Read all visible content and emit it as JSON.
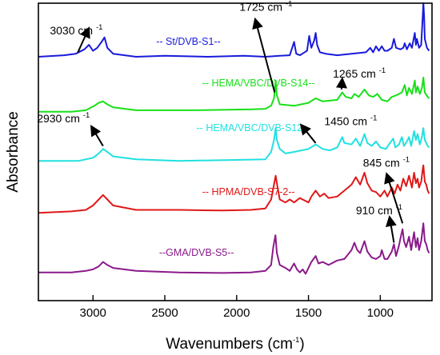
{
  "chart_data": {
    "type": "line",
    "xlabel": "Wavenumbers (cm",
    "xlabel_sup": "-1",
    "xlabel_end": ")",
    "ylabel": "Absorbance",
    "x_reversed": true,
    "xlim": [
      3380,
      640
    ],
    "ylim": [
      0,
      100
    ],
    "x_ticks": [
      3000,
      2500,
      2000,
      1500,
      1000
    ],
    "x_tick_labels": [
      "3000",
      "2500",
      "2000",
      "1500",
      "1000"
    ],
    "y_ticks_shown": false,
    "grid": false,
    "series": [
      {
        "name": "-- St/DVB-S1--",
        "color": "#1a1adc",
        "label_x": 2560,
        "label_y": 86,
        "points": [
          [
            3380,
            82
          ],
          [
            3200,
            82.5
          ],
          [
            3120,
            83
          ],
          [
            3060,
            84.5
          ],
          [
            3028,
            86
          ],
          [
            3000,
            84
          ],
          [
            2970,
            85
          ],
          [
            2940,
            87
          ],
          [
            2920,
            88.5
          ],
          [
            2900,
            85
          ],
          [
            2860,
            83
          ],
          [
            2700,
            82
          ],
          [
            2500,
            82.3
          ],
          [
            2200,
            82
          ],
          [
            1950,
            82.3
          ],
          [
            1800,
            82
          ],
          [
            1700,
            82.3
          ],
          [
            1630,
            82.5
          ],
          [
            1600,
            87
          ],
          [
            1585,
            83
          ],
          [
            1560,
            82.5
          ],
          [
            1510,
            84
          ],
          [
            1495,
            89
          ],
          [
            1480,
            85
          ],
          [
            1460,
            87.5
          ],
          [
            1450,
            90
          ],
          [
            1440,
            86
          ],
          [
            1420,
            83.5
          ],
          [
            1380,
            83
          ],
          [
            1300,
            82.5
          ],
          [
            1200,
            83
          ],
          [
            1100,
            83.5
          ],
          [
            1070,
            85
          ],
          [
            1050,
            83.5
          ],
          [
            1030,
            85.5
          ],
          [
            1010,
            84
          ],
          [
            990,
            85.5
          ],
          [
            970,
            84
          ],
          [
            950,
            84
          ],
          [
            920,
            85
          ],
          [
            905,
            88
          ],
          [
            890,
            85
          ],
          [
            860,
            84.5
          ],
          [
            840,
            85
          ],
          [
            830,
            86.5
          ],
          [
            815,
            84.5
          ],
          [
            795,
            86.5
          ],
          [
            780,
            85
          ],
          [
            760,
            90
          ],
          [
            752,
            86
          ],
          [
            745,
            88
          ],
          [
            730,
            85
          ],
          [
            715,
            86
          ],
          [
            705,
            95
          ],
          [
            700,
            100
          ],
          [
            695,
            96
          ],
          [
            690,
            88
          ],
          [
            675,
            85
          ],
          [
            660,
            84
          ]
        ]
      },
      {
        "name": "-- HEMA/VBC/DVB-S14--",
        "color": "#18e018",
        "label_x": 2240,
        "label_y": 72,
        "points": [
          [
            3380,
            63.5
          ],
          [
            3150,
            63.5
          ],
          [
            3050,
            64
          ],
          [
            2990,
            65.5
          ],
          [
            2960,
            66.5
          ],
          [
            2930,
            67
          ],
          [
            2900,
            66
          ],
          [
            2860,
            65
          ],
          [
            2700,
            64
          ],
          [
            2300,
            64
          ],
          [
            1900,
            64.3
          ],
          [
            1800,
            64.5
          ],
          [
            1760,
            65.5
          ],
          [
            1740,
            68
          ],
          [
            1728,
            74
          ],
          [
            1720,
            69
          ],
          [
            1700,
            66
          ],
          [
            1600,
            65.5
          ],
          [
            1550,
            66
          ],
          [
            1500,
            66.5
          ],
          [
            1450,
            68
          ],
          [
            1400,
            67
          ],
          [
            1300,
            67.5
          ],
          [
            1265,
            70
          ],
          [
            1240,
            68.5
          ],
          [
            1200,
            68
          ],
          [
            1180,
            69.5
          ],
          [
            1150,
            68.5
          ],
          [
            1110,
            71
          ],
          [
            1080,
            69
          ],
          [
            1050,
            68.5
          ],
          [
            1020,
            69.5
          ],
          [
            990,
            67.5
          ],
          [
            950,
            67
          ],
          [
            920,
            68.5
          ],
          [
            890,
            69
          ],
          [
            850,
            70
          ],
          [
            830,
            72.5
          ],
          [
            815,
            69
          ],
          [
            800,
            71.5
          ],
          [
            780,
            69.5
          ],
          [
            760,
            74
          ],
          [
            752,
            70
          ],
          [
            740,
            72
          ],
          [
            725,
            69.5
          ],
          [
            710,
            71.5
          ],
          [
            700,
            75
          ],
          [
            690,
            70
          ],
          [
            670,
            68.5
          ],
          [
            660,
            68
          ]
        ]
      },
      {
        "name": "-- HEMA/VBC/DVB-S12--",
        "color": "#22e0e0",
        "label_x": 2280,
        "label_y": 57,
        "points": [
          [
            3380,
            47
          ],
          [
            3100,
            47
          ],
          [
            3000,
            48
          ],
          [
            2960,
            49.5
          ],
          [
            2930,
            51
          ],
          [
            2900,
            50
          ],
          [
            2860,
            48.5
          ],
          [
            2700,
            47.5
          ],
          [
            2400,
            47
          ],
          [
            2000,
            47.3
          ],
          [
            1800,
            47.5
          ],
          [
            1760,
            50
          ],
          [
            1740,
            54
          ],
          [
            1728,
            58
          ],
          [
            1720,
            54
          ],
          [
            1700,
            51
          ],
          [
            1660,
            49.5
          ],
          [
            1600,
            50
          ],
          [
            1550,
            50.5
          ],
          [
            1500,
            51
          ],
          [
            1450,
            52.5
          ],
          [
            1400,
            51
          ],
          [
            1350,
            50.5
          ],
          [
            1300,
            51.5
          ],
          [
            1265,
            55
          ],
          [
            1250,
            53
          ],
          [
            1200,
            52.5
          ],
          [
            1170,
            54.5
          ],
          [
            1140,
            52
          ],
          [
            1110,
            56
          ],
          [
            1090,
            53
          ],
          [
            1060,
            52
          ],
          [
            1030,
            53.5
          ],
          [
            1000,
            51.5
          ],
          [
            960,
            51
          ],
          [
            940,
            52.5
          ],
          [
            910,
            54.5
          ],
          [
            895,
            51.5
          ],
          [
            870,
            52.5
          ],
          [
            850,
            55
          ],
          [
            835,
            52
          ],
          [
            815,
            53.5
          ],
          [
            800,
            55
          ],
          [
            785,
            52
          ],
          [
            765,
            57
          ],
          [
            752,
            54
          ],
          [
            740,
            56
          ],
          [
            725,
            52.5
          ],
          [
            710,
            55
          ],
          [
            700,
            58
          ],
          [
            690,
            54
          ],
          [
            670,
            52
          ],
          [
            660,
            51.5
          ]
        ]
      },
      {
        "name": "-- HPMA/DVB-S7-2--",
        "color": "#e01818",
        "label_x": 2240,
        "label_y": 35.5,
        "points": [
          [
            3380,
            29.5
          ],
          [
            3150,
            30
          ],
          [
            3050,
            30.5
          ],
          [
            3000,
            32
          ],
          [
            2960,
            34
          ],
          [
            2930,
            35.5
          ],
          [
            2900,
            34
          ],
          [
            2860,
            32
          ],
          [
            2700,
            30.5
          ],
          [
            2400,
            30.5
          ],
          [
            2100,
            30.3
          ],
          [
            1900,
            30.5
          ],
          [
            1800,
            31
          ],
          [
            1760,
            34
          ],
          [
            1740,
            39
          ],
          [
            1728,
            42
          ],
          [
            1715,
            38
          ],
          [
            1700,
            34
          ],
          [
            1660,
            33
          ],
          [
            1630,
            34
          ],
          [
            1600,
            33
          ],
          [
            1560,
            34.5
          ],
          [
            1500,
            33
          ],
          [
            1480,
            35
          ],
          [
            1450,
            37
          ],
          [
            1420,
            35
          ],
          [
            1390,
            36
          ],
          [
            1360,
            34.5
          ],
          [
            1300,
            35
          ],
          [
            1250,
            37
          ],
          [
            1200,
            39
          ],
          [
            1170,
            41.5
          ],
          [
            1140,
            39
          ],
          [
            1110,
            43
          ],
          [
            1090,
            39.5
          ],
          [
            1060,
            37
          ],
          [
            1030,
            36.5
          ],
          [
            1000,
            35
          ],
          [
            970,
            37
          ],
          [
            950,
            35
          ],
          [
            920,
            38
          ],
          [
            900,
            36
          ],
          [
            880,
            39
          ],
          [
            860,
            37
          ],
          [
            840,
            41
          ],
          [
            820,
            38.5
          ],
          [
            800,
            42
          ],
          [
            780,
            38
          ],
          [
            765,
            43
          ],
          [
            752,
            39.5
          ],
          [
            740,
            41
          ],
          [
            730,
            38
          ],
          [
            715,
            40
          ],
          [
            705,
            44
          ],
          [
            700,
            45.5
          ],
          [
            690,
            40
          ],
          [
            680,
            39
          ],
          [
            670,
            37
          ],
          [
            660,
            36
          ]
        ]
      },
      {
        "name": "--GMA/DVB-S5--",
        "color": "#8a1a8a",
        "label_x": 2540,
        "label_y": 15,
        "points": [
          [
            3380,
            9.5
          ],
          [
            3150,
            9.5
          ],
          [
            3050,
            10
          ],
          [
            3000,
            10.5
          ],
          [
            2960,
            11.5
          ],
          [
            2930,
            13
          ],
          [
            2900,
            12
          ],
          [
            2860,
            11
          ],
          [
            2700,
            10
          ],
          [
            2400,
            9.5
          ],
          [
            2100,
            9.3
          ],
          [
            1900,
            9.5
          ],
          [
            1800,
            10
          ],
          [
            1760,
            12
          ],
          [
            1745,
            18
          ],
          [
            1730,
            22
          ],
          [
            1720,
            16
          ],
          [
            1700,
            12
          ],
          [
            1660,
            11
          ],
          [
            1630,
            10
          ],
          [
            1600,
            12.5
          ],
          [
            1580,
            10.5
          ],
          [
            1560,
            9.5
          ],
          [
            1540,
            10.5
          ],
          [
            1520,
            9
          ],
          [
            1500,
            11
          ],
          [
            1480,
            13
          ],
          [
            1450,
            15
          ],
          [
            1430,
            12.5
          ],
          [
            1400,
            13
          ],
          [
            1360,
            12
          ],
          [
            1300,
            13.5
          ],
          [
            1250,
            14
          ],
          [
            1200,
            17
          ],
          [
            1180,
            19.5
          ],
          [
            1160,
            17
          ],
          [
            1140,
            16
          ],
          [
            1110,
            20
          ],
          [
            1090,
            16.5
          ],
          [
            1060,
            14.5
          ],
          [
            1030,
            14
          ],
          [
            1000,
            15
          ],
          [
            990,
            17
          ],
          [
            970,
            14
          ],
          [
            950,
            14
          ],
          [
            920,
            16.5
          ],
          [
            905,
            19
          ],
          [
            890,
            15
          ],
          [
            870,
            18.5
          ],
          [
            855,
            22
          ],
          [
            845,
            24
          ],
          [
            835,
            20
          ],
          [
            820,
            18
          ],
          [
            800,
            21.5
          ],
          [
            785,
            17
          ],
          [
            765,
            23
          ],
          [
            752,
            18
          ],
          [
            740,
            21
          ],
          [
            730,
            17
          ],
          [
            715,
            20
          ],
          [
            705,
            24
          ],
          [
            700,
            26
          ],
          [
            690,
            20
          ],
          [
            680,
            19
          ],
          [
            670,
            17
          ],
          [
            660,
            16
          ]
        ]
      }
    ],
    "annotations": [
      {
        "label": "3030 cm",
        "sup": "-1",
        "tx": 3300,
        "ty": 89.5,
        "ax": 3105,
        "ay": 83.5,
        "hx": 3030,
        "hy": 91.5
      },
      {
        "label": "1725 cm",
        "sup": "-1",
        "tx": 1980,
        "ty": 97.5,
        "ax": 1735,
        "ay": 70,
        "hx": 1870,
        "hy": 94.5
      },
      {
        "label": "1265 cm",
        "sup": "-1",
        "tx": 1330,
        "ty": 75,
        "ax": 1270,
        "ay": 71,
        "hx": 1265,
        "hy": 74.5
      },
      {
        "label": "2930 cm",
        "sup": "-1",
        "tx": 3390,
        "ty": 60,
        "ax": 2930,
        "ay": 52,
        "hx": 3010,
        "hy": 58.5
      },
      {
        "label": "1450 cm",
        "sup": "-1",
        "tx": 1390,
        "ty": 59,
        "ax": 1450,
        "ay": 53,
        "hx": 1550,
        "hy": 59
      },
      {
        "label": "845 cm",
        "sup": "-1",
        "tx": 1120,
        "ty": 45,
        "ax": 845,
        "ay": 26,
        "hx": 955,
        "hy": 42.5
      },
      {
        "label": "910 cm",
        "sup": "-1",
        "tx": 1170,
        "ty": 29,
        "ax": 905,
        "ay": 19.5,
        "hx": 935,
        "hy": 28
      }
    ]
  }
}
